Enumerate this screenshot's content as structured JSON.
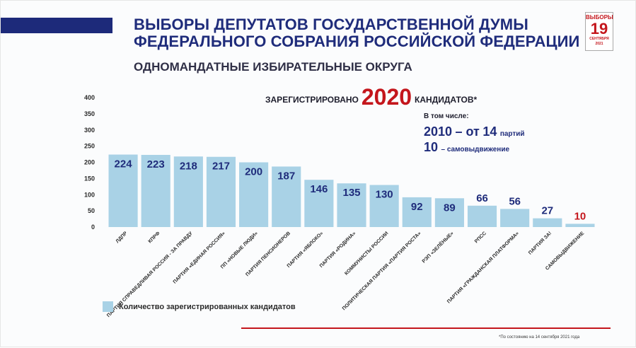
{
  "header": {
    "title_line1": "ВЫБОРЫ ДЕПУТАТОВ ГОСУДАРСТВЕННОЙ ДУМЫ",
    "title_line2": "ФЕДЕРАЛЬНОГО СОБРАНИЯ РОССИЙСКОЙ ФЕДЕРАЦИИ",
    "subtitle": "ОДНОМАНДАТНЫЕ ИЗБИРАТЕЛЬНЫЕ ОКРУГА",
    "brand_color": "#1f2c7b"
  },
  "badge": {
    "top": "ВЫБОРЫ",
    "number": "19",
    "month": "СЕНТЯБРЯ",
    "year": "2021",
    "color": "#c4161c",
    "icon": "elections-19-logo"
  },
  "summary": {
    "registered_prefix": "ЗАРЕГИСТРИРОВАНО",
    "registered_number": "2020",
    "registered_suffix": "КАНДИДАТОВ*",
    "including_label": "В том числе:",
    "line1_number": "2010",
    "line1_mid": "– от",
    "line1_parties": "14",
    "line1_suffix": "партий",
    "line2_number": "10",
    "line2_suffix": "– самовыдвижение"
  },
  "legend": {
    "label": "Количество зарегистрированных кандидатов",
    "color": "#a9d2e6"
  },
  "footnote": "*По состоянию на 14 сентября 2021 года",
  "chart_data": {
    "type": "bar",
    "ylim": [
      0,
      400
    ],
    "yticks": [
      0,
      50,
      100,
      150,
      200,
      250,
      300,
      350,
      400
    ],
    "grid": false,
    "legend_position": "bottom-left",
    "categories": [
      "ЛДПР",
      "КПРФ",
      "ПАРТИЯ СПРАВЕДЛИВАЯ РОССИЯ - ЗА ПРАВДУ",
      "ПАРТИЯ «ЕДИНАЯ РОССИЯ»",
      "ПП «НОВЫЕ ЛЮДИ»",
      "ПАРТИЯ ПЕНСИОНЕРОВ",
      "ПАРТИЯ «ЯБЛОКО»",
      "ПАРТИЯ «РОДИНА»",
      "КОММУНИСТЫ РОССИИ",
      "ПОЛИТИЧЕСКАЯ ПАРТИЯ «ПАРТИЯ РОСТА»",
      "РЭП «ЗЕЛЁНЫЕ»",
      "РПСС",
      "ПАРТИЯ «ГРАЖДАНСКАЯ ПЛАТФОРМА»",
      "ПАРТИЯ ЗА!",
      "САМОВЫДВИЖЕНИЕ"
    ],
    "series": [
      {
        "name": "Количество зарегистрированных кандидатов",
        "values": [
          224,
          223,
          218,
          217,
          200,
          187,
          146,
          135,
          130,
          92,
          89,
          66,
          56,
          27,
          10
        ]
      }
    ],
    "bar_color": "#a9d2e6",
    "label_color": "#1f2c7b",
    "highlight_label_color": "#c4161c",
    "highlight_index": 14
  }
}
